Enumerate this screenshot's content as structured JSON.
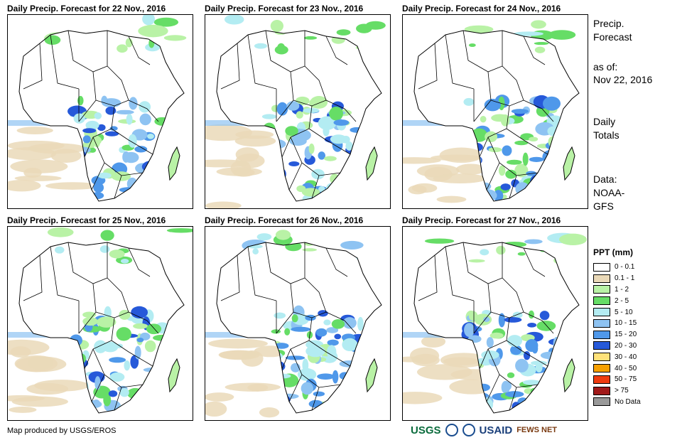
{
  "panels": [
    {
      "title": "Daily Precip. Forecast for 22 Nov., 2016"
    },
    {
      "title": "Daily Precip. Forecast for 23 Nov., 2016"
    },
    {
      "title": "Daily Precip. Forecast for 24 Nov., 2016"
    },
    {
      "title": "Daily Precip. Forecast for 25 Nov., 2016"
    },
    {
      "title": "Daily Precip. Forecast for 26 Nov., 2016"
    },
    {
      "title": "Daily Precip. Forecast for 27 Nov., 2016"
    }
  ],
  "sidebar": {
    "heading_line1": "Precip.",
    "heading_line2": "Forecast",
    "asof_label": "as of:",
    "asof_date": "Nov 22, 2016",
    "totals_line1": "Daily",
    "totals_line2": "Totals",
    "data_line1": "Data:",
    "data_line2": "NOAA-",
    "data_line3": "GFS"
  },
  "legend": {
    "title": "PPT (mm)",
    "items": [
      {
        "label": "0 - 0.1",
        "color": "#ffffff"
      },
      {
        "label": "0.1 - 1",
        "color": "#ead9b8"
      },
      {
        "label": "1 - 2",
        "color": "#b9f2a6"
      },
      {
        "label": "2 - 5",
        "color": "#66dd66"
      },
      {
        "label": "5 - 10",
        "color": "#b3ecf2"
      },
      {
        "label": "10 - 15",
        "color": "#8ec3f2"
      },
      {
        "label": "15 - 20",
        "color": "#4f98ea"
      },
      {
        "label": "20 - 30",
        "color": "#2659d9"
      },
      {
        "label": "30 - 40",
        "color": "#ffe27a"
      },
      {
        "label": "40 - 50",
        "color": "#f7a000"
      },
      {
        "label": "50 - 75",
        "color": "#ee3b10"
      },
      {
        "label": "> 75",
        "color": "#a11a1a"
      },
      {
        "label": "No Data",
        "color": "#999999"
      }
    ]
  },
  "footer": {
    "credit": "Map produced by USGS/EROS",
    "logo_usgs": "USGS",
    "logo_usaid": "USAID",
    "logo_fews": "FEWS NET"
  }
}
